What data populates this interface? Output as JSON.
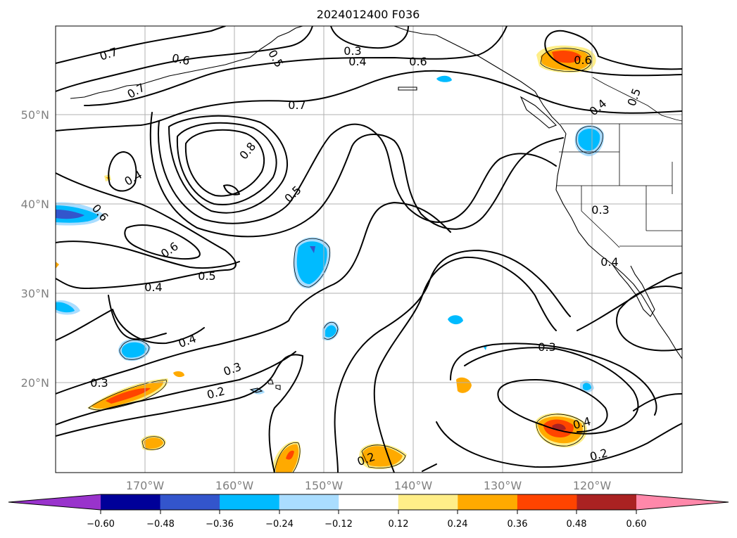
{
  "map": {
    "title": "2024012400 F036",
    "lon_labels": [
      "170°W",
      "160°W",
      "150°W",
      "140°W",
      "130°W",
      "120°W"
    ],
    "lat_labels": [
      "50°N",
      "40°N",
      "30°N",
      "20°N"
    ]
  },
  "contour_labels": [
    {
      "text": "0.7"
    },
    {
      "text": "0.6"
    },
    {
      "text": "0.5"
    },
    {
      "text": "0.7"
    },
    {
      "text": "0.3"
    },
    {
      "text": "0.4"
    },
    {
      "text": "0.6"
    },
    {
      "text": "0.6"
    },
    {
      "text": "0.5"
    },
    {
      "text": "0.4"
    },
    {
      "text": "0.7"
    },
    {
      "text": "0.8"
    },
    {
      "text": "0.4"
    },
    {
      "text": "0.6"
    },
    {
      "text": "0.5"
    },
    {
      "text": "0.6"
    },
    {
      "text": "0.5"
    },
    {
      "text": "0.4"
    },
    {
      "text": "0.3"
    },
    {
      "text": "0.4"
    },
    {
      "text": "0.4"
    },
    {
      "text": "0.3"
    },
    {
      "text": "0.3"
    },
    {
      "text": "0.2"
    },
    {
      "text": "0.3"
    },
    {
      "text": "0.4"
    },
    {
      "text": "0.2"
    },
    {
      "text": "0.2"
    }
  ],
  "colorbar": {
    "colors": [
      "#9933cc",
      "#000099",
      "#3355cc",
      "#00bbff",
      "#aaddff",
      "#ffffff",
      "#ffee88",
      "#ffaa00",
      "#ff4400",
      "#aa2222",
      "#ff88aa"
    ],
    "ticks": [
      "−0.60",
      "−0.48",
      "−0.36",
      "−0.24",
      "−0.12",
      "0.12",
      "0.24",
      "0.36",
      "0.48",
      "0.60"
    ]
  }
}
